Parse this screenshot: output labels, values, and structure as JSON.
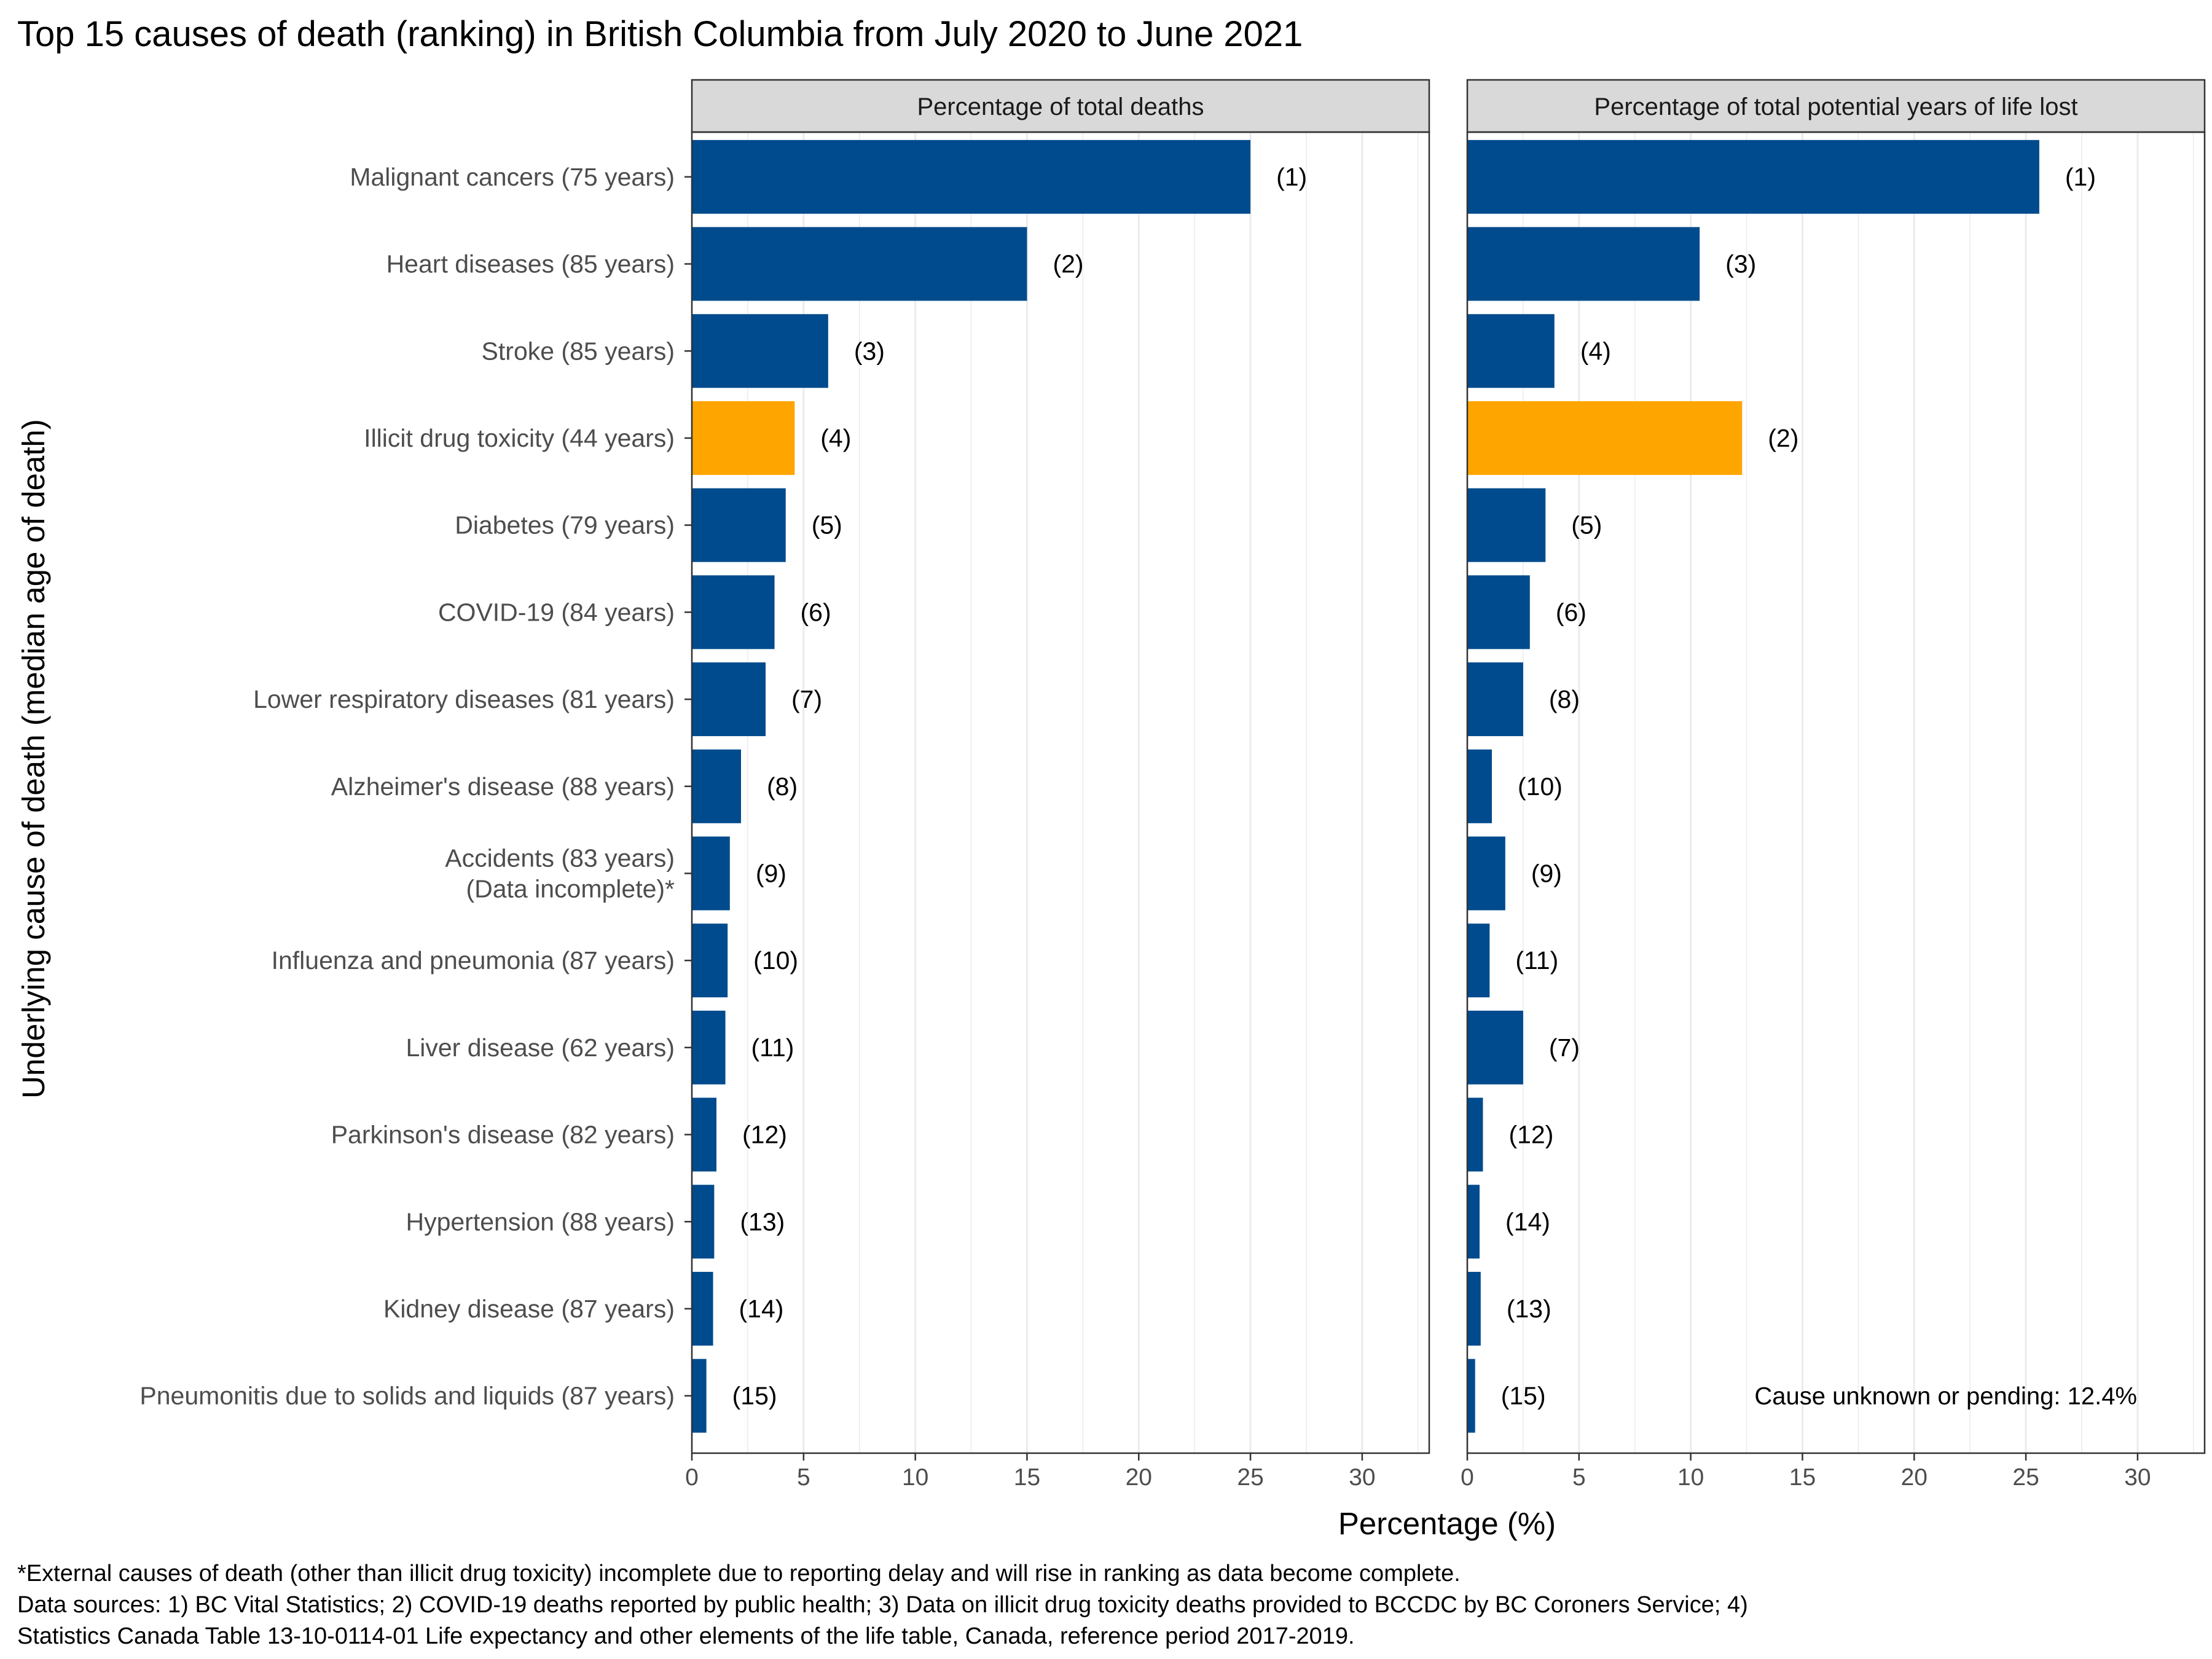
{
  "title": "Top 15 causes of death (ranking) in British Columbia from July 2020 to June 2021",
  "colors": {
    "default_bar": "#004B8D",
    "highlight_bar": "#FFA500",
    "strip_fill": "#D9D9D9",
    "grid": "#EBEBEB"
  },
  "chart_data": {
    "type": "bar",
    "orientation": "horizontal",
    "ylabel": "Underlying cause of death (median age of death)",
    "xlabel": "Percentage (%)",
    "xlim": [
      0,
      33
    ],
    "xticks": [
      0,
      5,
      10,
      15,
      20,
      25,
      30
    ],
    "grid": true,
    "categories": [
      "Malignant cancers (75 years)",
      "Heart diseases (85 years)",
      "Stroke (85 years)",
      "Illicit drug toxicity (44 years)",
      "Diabetes (79 years)",
      "COVID-19 (84 years)",
      "Lower respiratory diseases (81 years)",
      "Alzheimer's disease (88 years)",
      "Accidents (83 years)\n(Data incomplete)*",
      "Influenza and pneumonia (87 years)",
      "Liver disease (62 years)",
      "Parkinson's disease (82 years)",
      "Hypertension (88 years)",
      "Kidney disease (87 years)",
      "Pneumonitis due to solids and liquids (87 years)"
    ],
    "highlight_category": "Illicit drug toxicity (44 years)",
    "panels": [
      {
        "name": "Percentage of total deaths",
        "values": [
          25.0,
          15.0,
          6.1,
          4.6,
          4.2,
          3.7,
          3.3,
          2.2,
          1.7,
          1.6,
          1.5,
          1.1,
          1.0,
          0.95,
          0.65
        ],
        "ranks": [
          "(1)",
          "(2)",
          "(3)",
          "(4)",
          "(5)",
          "(6)",
          "(7)",
          "(8)",
          "(9)",
          "(10)",
          "(11)",
          "(12)",
          "(13)",
          "(14)",
          "(15)"
        ]
      },
      {
        "name": "Percentage of total potential years of life lost",
        "values": [
          25.6,
          10.4,
          3.9,
          12.3,
          3.5,
          2.8,
          2.5,
          1.1,
          1.7,
          1.0,
          2.5,
          0.7,
          0.55,
          0.6,
          0.35
        ],
        "ranks": [
          "(1)",
          "(3)",
          "(4)",
          "(2)",
          "(5)",
          "(6)",
          "(8)",
          "(10)",
          "(9)",
          "(11)",
          "(7)",
          "(12)",
          "(14)",
          "(13)",
          "(15)"
        ],
        "annotation": "Cause unknown or pending: 12.4%"
      }
    ]
  },
  "footnotes": [
    "*External causes of death (other than illicit drug toxicity) incomplete due to reporting delay and will rise in ranking as data become complete.",
    "Data sources: 1) BC Vital Statistics; 2) COVID-19 deaths reported by public health; 3) Data on illicit drug toxicity deaths provided to BCCDC by BC Coroners Service; 4)",
    "Statistics Canada Table 13-10-0114-01 Life expectancy and other elements of the life table, Canada, reference period 2017-2019."
  ]
}
